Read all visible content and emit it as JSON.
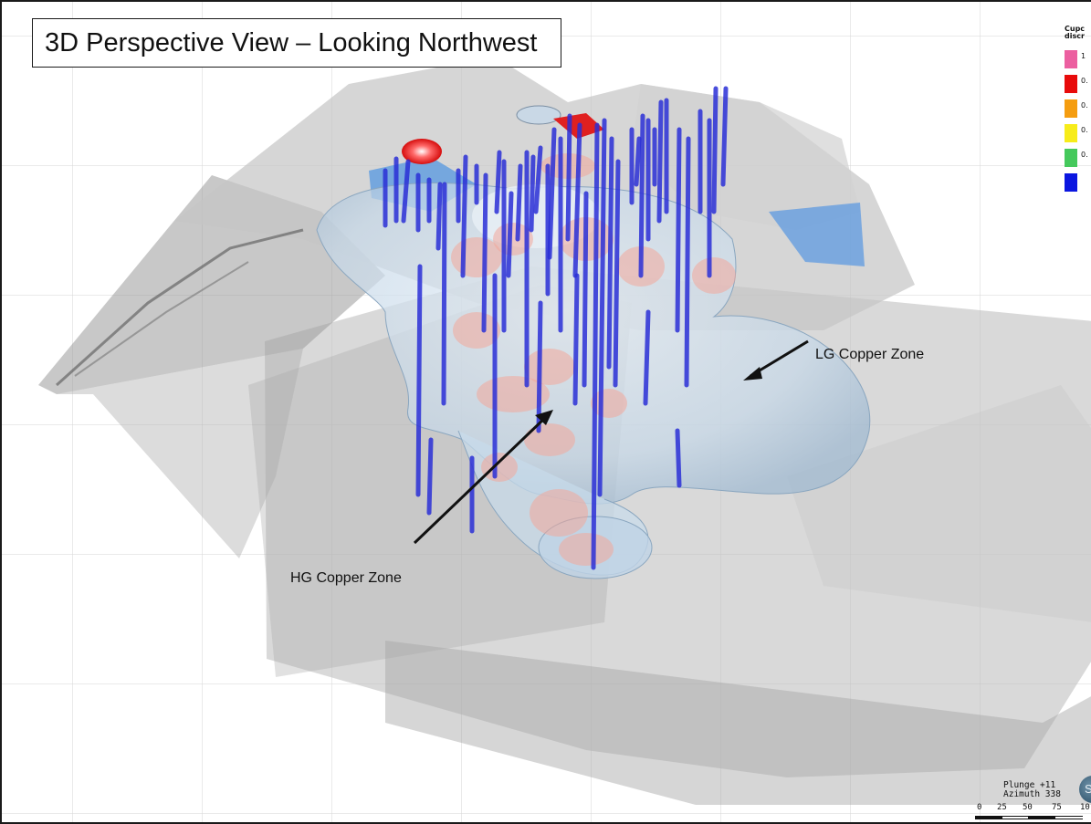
{
  "title": "3D Perspective View – Looking Northwest",
  "annotations": {
    "lg_label": "LG Copper Zone",
    "hg_label": "HG Copper Zone"
  },
  "legend": {
    "title": "Cupc\ndiscr",
    "ticks": [
      "1",
      "0.",
      "0.",
      "0.",
      "0."
    ],
    "colors": [
      "#ec5fa0",
      "#e80b0b",
      "#f59d10",
      "#f7ec1a",
      "#45c95c",
      "#0b16e0"
    ]
  },
  "navigation": {
    "plunge": "Plunge +11",
    "azimuth": "Azimuth 338",
    "compass_letter": "S"
  },
  "scale_bar": {
    "ticks": [
      "0",
      "25",
      "50",
      "75",
      "10"
    ]
  },
  "colors": {
    "drillhole": "#2a2fd6",
    "lg_zone": "#c9dcec",
    "hg_zone": "#f0a79a",
    "surface": "#bfbfbf"
  }
}
